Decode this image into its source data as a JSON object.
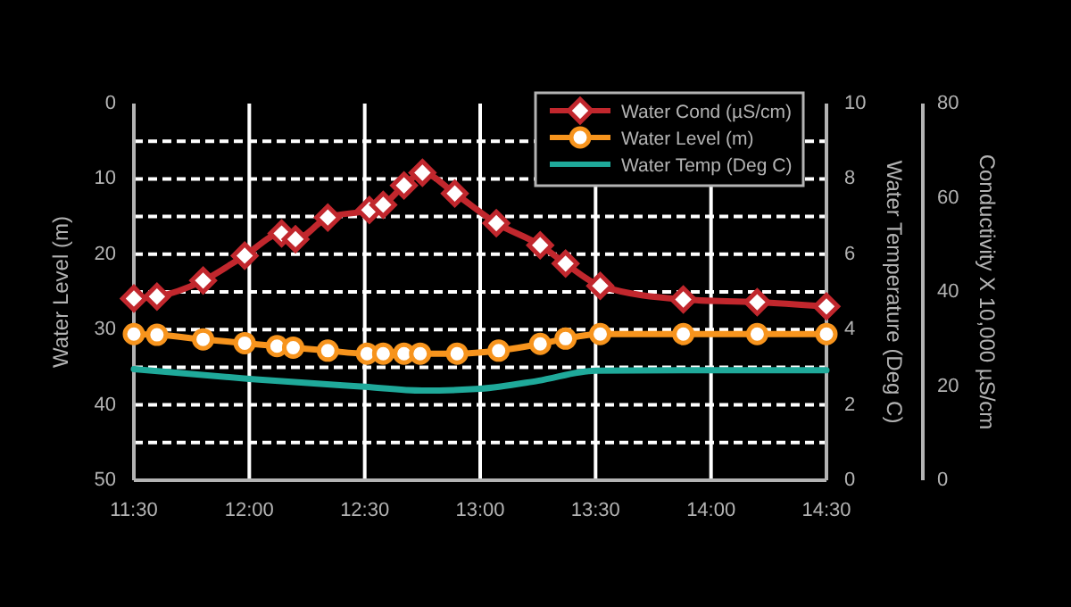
{
  "chart_data": {
    "type": "line",
    "ylabel": "Water Level (m)",
    "y2label": "Water Temperature (Deg C)",
    "y3label": "Conductivity X 10,000 µS/cm",
    "xlim": [
      11.5,
      14.5
    ],
    "xticks": [
      {
        "value": 11.5,
        "label": "11:30"
      },
      {
        "value": 12,
        "label": "12:00"
      },
      {
        "value": 12.5,
        "label": "12:30"
      },
      {
        "value": 13,
        "label": "13:00"
      },
      {
        "value": 13.5,
        "label": "13:30"
      },
      {
        "value": 14,
        "label": "14:00"
      },
      {
        "value": 14.5,
        "label": "14:30"
      }
    ],
    "ylim": [
      50,
      0
    ],
    "yticks": [
      0,
      {
        "value": 5,
        "label": null
      },
      10,
      {
        "value": 15,
        "label": null
      },
      20,
      {
        "value": 25,
        "label": null
      },
      30,
      {
        "value": 35,
        "label": null
      },
      40,
      {
        "value": 45,
        "label": null
      },
      50
    ],
    "y2lim": [
      0,
      10
    ],
    "y2ticks": [
      0,
      2,
      4,
      6,
      8,
      10
    ],
    "y3lim": [
      0,
      80
    ],
    "y3ticks": [
      0,
      20,
      40,
      60,
      80
    ],
    "grid": true,
    "legend": "top right",
    "line_style": "solid",
    "series": [
      {
        "name": "Water Cond (µS/cm)",
        "color": "#c1272d",
        "axis": "y3",
        "marker": "diamond",
        "x": [
          11.5,
          11.6,
          11.8,
          11.98,
          12.14,
          12.2,
          12.34,
          12.52,
          12.58,
          12.67,
          12.75,
          12.89,
          13.07,
          13.26,
          13.37,
          13.52,
          13.88,
          14.2,
          14.5
        ],
        "values": [
          38.6,
          39.0,
          42.4,
          47.7,
          52.4,
          51.2,
          55.8,
          57.4,
          58.5,
          62.6,
          65.3,
          60.9,
          54.6,
          49.9,
          46.0,
          41.3,
          38.4,
          37.8,
          36.9
        ]
      },
      {
        "name": "Water Level (m)",
        "color": "#f7941d",
        "axis": "y",
        "marker": "circle",
        "x": [
          11.5,
          11.6,
          11.8,
          11.98,
          12.12,
          12.19,
          12.34,
          12.51,
          12.58,
          12.67,
          12.74,
          12.9,
          13.08,
          13.26,
          13.37,
          13.52,
          13.88,
          14.2,
          14.5
        ],
        "values": [
          30.6,
          30.7,
          31.3,
          31.8,
          32.2,
          32.4,
          32.8,
          33.2,
          33.2,
          33.2,
          33.2,
          33.2,
          32.8,
          31.9,
          31.2,
          30.6,
          30.6,
          30.6,
          30.6
        ]
      },
      {
        "name": "Water Temp (Deg C)",
        "color": "#1fa99a",
        "axis": "y2",
        "marker": "none",
        "x": [
          11.5,
          12,
          12.5,
          12.75,
          13,
          13.25,
          13.5,
          14,
          14.5
        ],
        "values": [
          2.95,
          2.69,
          2.48,
          2.38,
          2.43,
          2.64,
          2.91,
          2.92,
          2.92
        ]
      }
    ]
  }
}
